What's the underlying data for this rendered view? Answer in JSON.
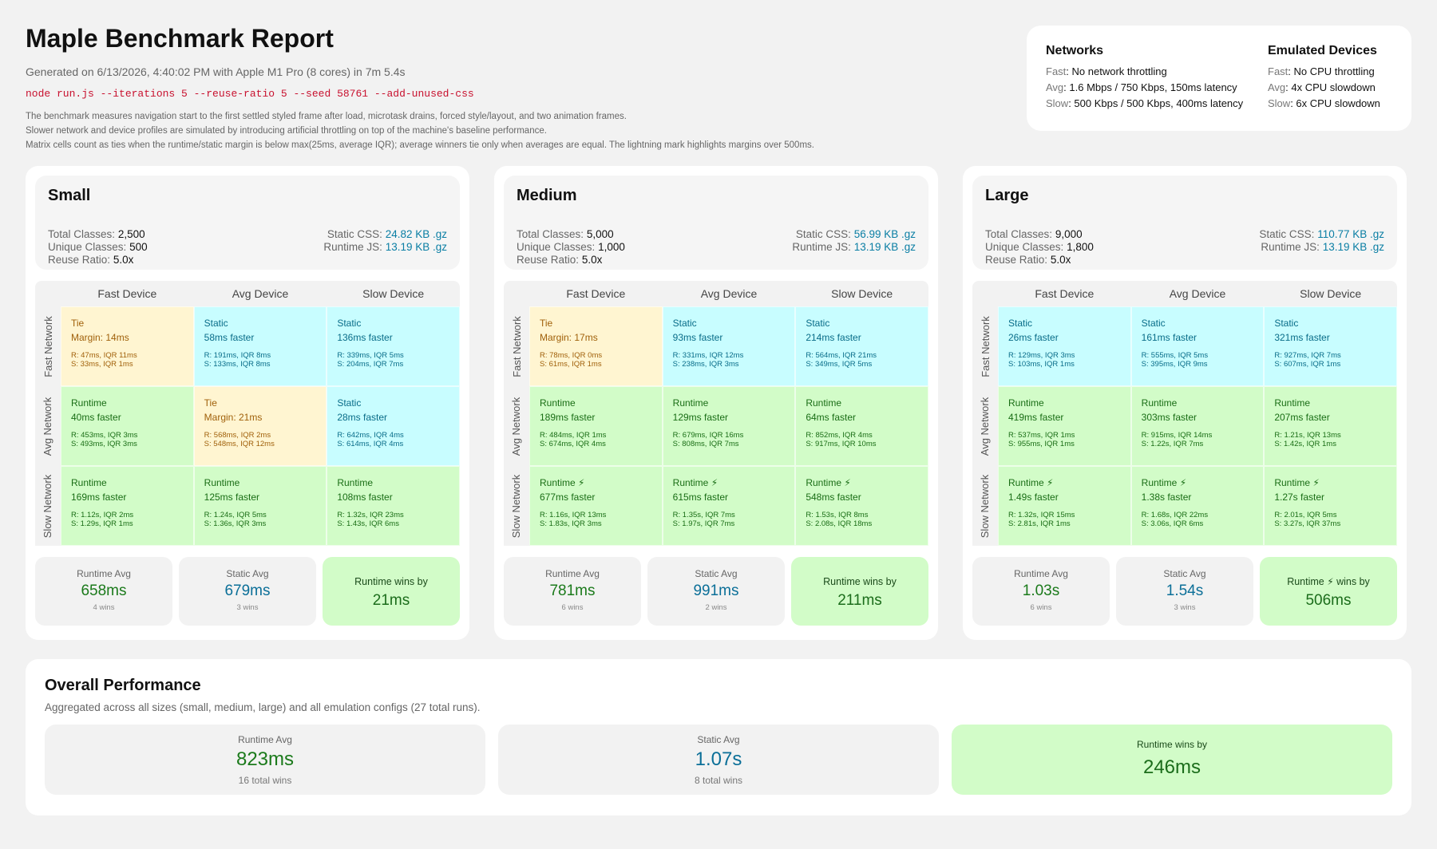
{
  "header": {
    "title": "Maple Benchmark Report",
    "subtitle": "Generated on 6/13/2026, 4:40:02 PM with Apple M1 Pro (8 cores) in 7m 5.4s",
    "command": "node run.js --iterations 5 --reuse-ratio 5 --seed 58761 --add-unused-css",
    "desc": [
      "The benchmark measures navigation start to the first settled styled frame after load, microtask drains, forced style/layout, and two animation frames.",
      "Slower network and device profiles are simulated by introducing artificial throttling on top of the machine's baseline performance.",
      "Matrix cells count as ties when the runtime/static margin is below max(25ms, average IQR); average winners tie only when averages are equal. The lightning mark highlights margins over 500ms."
    ]
  },
  "legend": {
    "networks": {
      "title": "Networks",
      "items": [
        {
          "k": "Fast",
          "v": ": No network throttling"
        },
        {
          "k": "Avg",
          "v": ": 1.6 Mbps / 750 Kbps, 150ms latency"
        },
        {
          "k": "Slow",
          "v": ": 500 Kbps / 500 Kbps, 400ms latency"
        }
      ]
    },
    "devices": {
      "title": "Emulated Devices",
      "items": [
        {
          "k": "Fast",
          "v": ": No CPU throttling"
        },
        {
          "k": "Avg",
          "v": ": 4x CPU slowdown"
        },
        {
          "k": "Slow",
          "v": ": 6x CPU slowdown"
        }
      ]
    }
  },
  "labels": {
    "total_classes": "Total Classes:",
    "unique_classes": "Unique Classes:",
    "reuse_ratio": "Reuse Ratio:",
    "static_css": "Static CSS:",
    "runtime_js": "Runtime JS:",
    "cols": [
      "Fast Device",
      "Avg Device",
      "Slow Device"
    ],
    "rows": [
      "Fast Network",
      "Avg Network",
      "Slow Network"
    ],
    "runtime_avg": "Runtime Avg",
    "static_avg": "Static Avg"
  },
  "sizes": [
    {
      "name": "Small",
      "total": "2,500",
      "unique": "500",
      "reuse": "5.0x",
      "static_css": "24.82 KB .gz",
      "runtime_js": "13.19 KB .gz",
      "cells": [
        {
          "type": "tie",
          "w": "Tie",
          "m": "Margin: 14ms",
          "r": "R: 47ms, IQR 11ms",
          "s": "S: 33ms, IQR 1ms"
        },
        {
          "type": "static",
          "w": "Static",
          "m": "58ms faster",
          "r": "R: 191ms, IQR 8ms",
          "s": "S: 133ms, IQR 8ms"
        },
        {
          "type": "static",
          "w": "Static",
          "m": "136ms faster",
          "r": "R: 339ms, IQR 5ms",
          "s": "S: 204ms, IQR 7ms"
        },
        {
          "type": "runtime",
          "w": "Runtime",
          "m": "40ms faster",
          "r": "R: 453ms, IQR 3ms",
          "s": "S: 493ms, IQR 3ms"
        },
        {
          "type": "tie",
          "w": "Tie",
          "m": "Margin: 21ms",
          "r": "R: 568ms, IQR 2ms",
          "s": "S: 548ms, IQR 12ms"
        },
        {
          "type": "static",
          "w": "Static",
          "m": "28ms faster",
          "r": "R: 642ms, IQR 4ms",
          "s": "S: 614ms, IQR 4ms"
        },
        {
          "type": "runtime",
          "w": "Runtime",
          "m": "169ms faster",
          "r": "R: 1.12s, IQR 2ms",
          "s": "S: 1.29s, IQR 1ms"
        },
        {
          "type": "runtime",
          "w": "Runtime",
          "m": "125ms faster",
          "r": "R: 1.24s, IQR 5ms",
          "s": "S: 1.36s, IQR 3ms"
        },
        {
          "type": "runtime",
          "w": "Runtime",
          "m": "108ms faster",
          "r": "R: 1.32s, IQR 23ms",
          "s": "S: 1.43s, IQR 6ms"
        }
      ],
      "runtime_avg": "658ms",
      "runtime_wins": "4 wins",
      "static_avg": "679ms",
      "static_wins": "3 wins",
      "winner_label": "Runtime wins by",
      "winner_bolt": false,
      "winner_value": "21ms"
    },
    {
      "name": "Medium",
      "total": "5,000",
      "unique": "1,000",
      "reuse": "5.0x",
      "static_css": "56.99 KB .gz",
      "runtime_js": "13.19 KB .gz",
      "cells": [
        {
          "type": "tie",
          "w": "Tie",
          "m": "Margin: 17ms",
          "r": "R: 78ms, IQR 0ms",
          "s": "S: 61ms, IQR 1ms"
        },
        {
          "type": "static",
          "w": "Static",
          "m": "93ms faster",
          "r": "R: 331ms, IQR 12ms",
          "s": "S: 238ms, IQR 3ms"
        },
        {
          "type": "static",
          "w": "Static",
          "m": "214ms faster",
          "r": "R: 564ms, IQR 21ms",
          "s": "S: 349ms, IQR 5ms"
        },
        {
          "type": "runtime",
          "w": "Runtime",
          "m": "189ms faster",
          "r": "R: 484ms, IQR 1ms",
          "s": "S: 674ms, IQR 4ms"
        },
        {
          "type": "runtime",
          "w": "Runtime",
          "m": "129ms faster",
          "r": "R: 679ms, IQR 16ms",
          "s": "S: 808ms, IQR 7ms"
        },
        {
          "type": "runtime",
          "w": "Runtime",
          "m": "64ms faster",
          "r": "R: 852ms, IQR 4ms",
          "s": "S: 917ms, IQR 10ms"
        },
        {
          "type": "runtime",
          "w": "Runtime",
          "bolt": true,
          "m": "677ms faster",
          "r": "R: 1.16s, IQR 13ms",
          "s": "S: 1.83s, IQR 3ms"
        },
        {
          "type": "runtime",
          "w": "Runtime",
          "bolt": true,
          "m": "615ms faster",
          "r": "R: 1.35s, IQR 7ms",
          "s": "S: 1.97s, IQR 7ms"
        },
        {
          "type": "runtime",
          "w": "Runtime",
          "bolt": true,
          "m": "548ms faster",
          "r": "R: 1.53s, IQR 8ms",
          "s": "S: 2.08s, IQR 18ms"
        }
      ],
      "runtime_avg": "781ms",
      "runtime_wins": "6 wins",
      "static_avg": "991ms",
      "static_wins": "2 wins",
      "winner_label": "Runtime wins by",
      "winner_bolt": false,
      "winner_value": "211ms"
    },
    {
      "name": "Large",
      "total": "9,000",
      "unique": "1,800",
      "reuse": "5.0x",
      "static_css": "110.77 KB .gz",
      "runtime_js": "13.19 KB .gz",
      "cells": [
        {
          "type": "static",
          "w": "Static",
          "m": "26ms faster",
          "r": "R: 129ms, IQR 3ms",
          "s": "S: 103ms, IQR 1ms"
        },
        {
          "type": "static",
          "w": "Static",
          "m": "161ms faster",
          "r": "R: 555ms, IQR 5ms",
          "s": "S: 395ms, IQR 9ms"
        },
        {
          "type": "static",
          "w": "Static",
          "m": "321ms faster",
          "r": "R: 927ms, IQR 7ms",
          "s": "S: 607ms, IQR 1ms"
        },
        {
          "type": "runtime",
          "w": "Runtime",
          "m": "419ms faster",
          "r": "R: 537ms, IQR 1ms",
          "s": "S: 955ms, IQR 1ms"
        },
        {
          "type": "runtime",
          "w": "Runtime",
          "m": "303ms faster",
          "r": "R: 915ms, IQR 14ms",
          "s": "S: 1.22s, IQR 7ms"
        },
        {
          "type": "runtime",
          "w": "Runtime",
          "m": "207ms faster",
          "r": "R: 1.21s, IQR 13ms",
          "s": "S: 1.42s, IQR 1ms"
        },
        {
          "type": "runtime",
          "w": "Runtime",
          "bolt": true,
          "m": "1.49s faster",
          "r": "R: 1.32s, IQR 15ms",
          "s": "S: 2.81s, IQR 1ms"
        },
        {
          "type": "runtime",
          "w": "Runtime",
          "bolt": true,
          "m": "1.38s faster",
          "r": "R: 1.68s, IQR 22ms",
          "s": "S: 3.06s, IQR 6ms"
        },
        {
          "type": "runtime",
          "w": "Runtime",
          "bolt": true,
          "m": "1.27s faster",
          "r": "R: 2.01s, IQR 5ms",
          "s": "S: 3.27s, IQR 37ms"
        }
      ],
      "runtime_avg": "1.03s",
      "runtime_wins": "6 wins",
      "static_avg": "1.54s",
      "static_wins": "3 wins",
      "winner_label": "Runtime wins by",
      "winner_bolt": true,
      "winner_value": "506ms"
    }
  ],
  "overall": {
    "title": "Overall Performance",
    "subtitle": "Aggregated across all sizes (small, medium, large) and all emulation configs (27 total runs).",
    "runtime_label": "Runtime Avg",
    "runtime_avg": "823ms",
    "runtime_wins": "16 total wins",
    "static_label": "Static Avg",
    "static_avg": "1.07s",
    "static_wins": "8 total wins",
    "winner_label": "Runtime wins by",
    "winner_value": "246ms"
  },
  "colors": {
    "tie": "#fff5d1",
    "static": "#c8fdff",
    "runtime": "#d2fcc8",
    "command": "#c8102e",
    "link": "#0a7ea4"
  },
  "icons": {
    "bolt": "lightning-icon"
  }
}
